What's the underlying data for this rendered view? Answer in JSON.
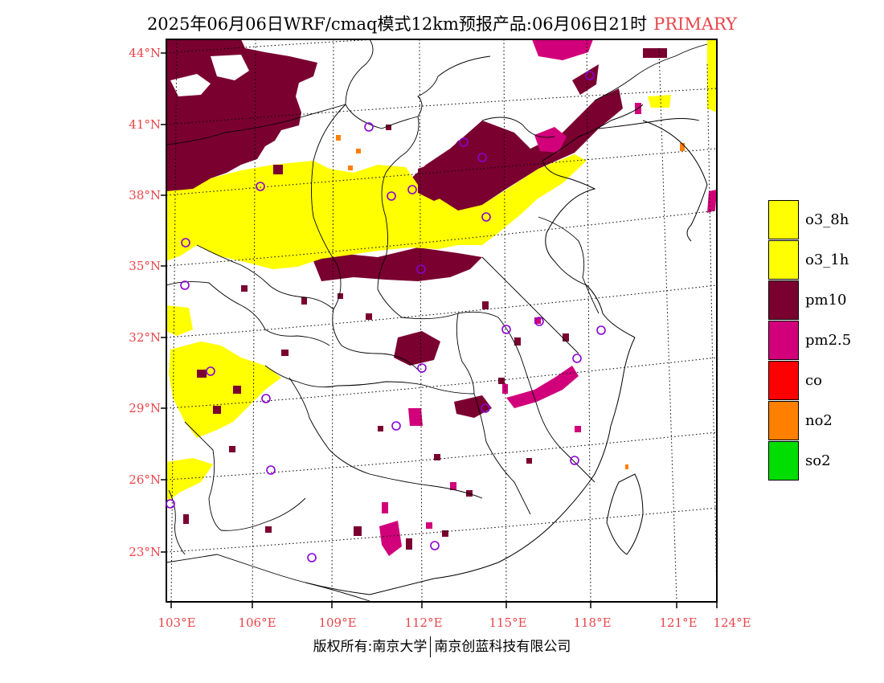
{
  "title": {
    "main": "2025年06月06日WRF/cmaq模式12km预报产品:06月06日21时",
    "tag": "PRIMARY"
  },
  "axes": {
    "lat_labels": [
      "44°N",
      "41°N",
      "38°N",
      "35°N",
      "32°N",
      "29°N",
      "26°N",
      "23°N"
    ],
    "lon_labels": [
      "103°E",
      "106°E",
      "109°E",
      "112°E",
      "115°E",
      "118°E",
      "121°E",
      "124°E"
    ]
  },
  "legend": {
    "items": [
      {
        "label": "o3_8h",
        "color": "#ffff00"
      },
      {
        "label": "o3_1h",
        "color": "#ffff00"
      },
      {
        "label": "pm10",
        "color": "#7a0030"
      },
      {
        "label": "pm2.5",
        "color": "#d1007a"
      },
      {
        "label": "co",
        "color": "#ff0000"
      },
      {
        "label": "no2",
        "color": "#ff7f00"
      },
      {
        "label": "so2",
        "color": "#00dd00"
      }
    ]
  },
  "credit": {
    "left": "版权所有:南京大学",
    "right": "南京创蓝科技有限公司"
  },
  "colors": {
    "label_red": "#e8454a",
    "station_marker": "#8a00d4",
    "border": "#000000"
  }
}
